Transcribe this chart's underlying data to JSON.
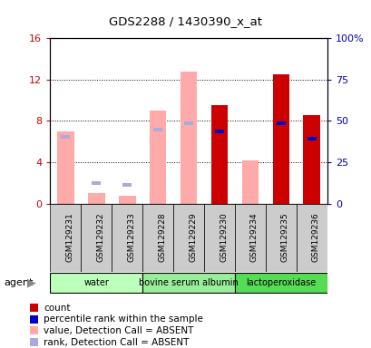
{
  "title": "GDS2288 / 1430390_x_at",
  "samples": [
    "GSM129231",
    "GSM129232",
    "GSM129233",
    "GSM129228",
    "GSM129229",
    "GSM129230",
    "GSM129234",
    "GSM129235",
    "GSM129236"
  ],
  "groups": [
    {
      "label": "water",
      "color": "#bbffbb",
      "indices": [
        0,
        1,
        2
      ]
    },
    {
      "label": "bovine serum albumin",
      "color": "#99ee99",
      "indices": [
        3,
        4,
        5
      ]
    },
    {
      "label": "lactoperoxidase",
      "color": "#55dd55",
      "indices": [
        6,
        7,
        8
      ]
    }
  ],
  "ylim_left": [
    0,
    16
  ],
  "ylim_right": [
    0,
    100
  ],
  "yticks_left": [
    0,
    4,
    8,
    12,
    16
  ],
  "yticks_right": [
    0,
    25,
    50,
    75,
    100
  ],
  "yticklabels_right": [
    "0",
    "25",
    "50",
    "75",
    "100%"
  ],
  "red_bars": [
    null,
    null,
    null,
    null,
    null,
    9.5,
    null,
    12.5,
    8.6
  ],
  "blue_squares": [
    null,
    null,
    null,
    null,
    null,
    7.0,
    null,
    7.8,
    6.3
  ],
  "pink_bars": [
    7.0,
    1.0,
    0.8,
    9.0,
    12.8,
    null,
    4.2,
    null,
    null
  ],
  "lavender_squares": [
    null,
    2.0,
    1.8,
    null,
    null,
    null,
    null,
    null,
    null
  ],
  "blue_absent_squares": [
    6.5,
    null,
    null,
    7.2,
    7.8,
    null,
    null,
    null,
    null
  ],
  "bar_width": 0.55,
  "red_color": "#cc0000",
  "blue_color": "#0000cc",
  "pink_color": "#ffaaaa",
  "lavender_color": "#aaaadd",
  "left_axis_color": "#cc0000",
  "right_axis_color": "#0000bb",
  "legend_items": [
    {
      "color": "#cc0000",
      "label": "count"
    },
    {
      "color": "#0000cc",
      "label": "percentile rank within the sample"
    },
    {
      "color": "#ffaaaa",
      "label": "value, Detection Call = ABSENT"
    },
    {
      "color": "#aaaadd",
      "label": "rank, Detection Call = ABSENT"
    }
  ]
}
